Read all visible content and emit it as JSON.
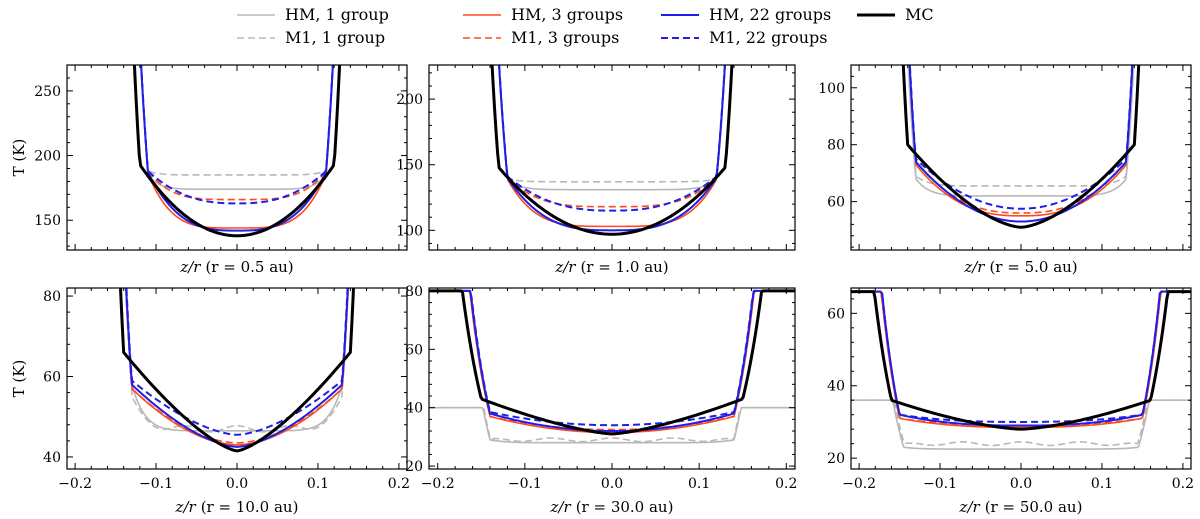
{
  "legend": {
    "entries": [
      {
        "label": "HM, 1 group",
        "color": "#b8b8b8",
        "dash": "solid",
        "width": "thin"
      },
      {
        "label": "M1, 1 group",
        "color": "#b8b8b8",
        "dash": "dashed",
        "width": "thin"
      },
      {
        "label": "HM, 3 groups",
        "color": "#ff4a1c",
        "dash": "solid",
        "width": "thin"
      },
      {
        "label": "M1, 3 groups",
        "color": "#ff4a1c",
        "dash": "dashed",
        "width": "thin"
      },
      {
        "label": "HM, 22 groups",
        "color": "#1f1fe6",
        "dash": "solid",
        "width": "medium"
      },
      {
        "label": "M1, 22 groups",
        "color": "#1f1fe6",
        "dash": "dashed",
        "width": "medium"
      },
      {
        "label": "MC",
        "color": "#000000",
        "dash": "solid",
        "width": "thick"
      }
    ]
  },
  "chart_data": [
    {
      "type": "line",
      "row": 0,
      "col": 0,
      "xlabel": "z/r",
      "xlabel_suffix": "(r = 0.5 au)",
      "ylabel": "T (K)",
      "xlim": [
        -0.21,
        0.21
      ],
      "ylim": [
        127,
        270
      ],
      "xticks": [
        -0.2,
        -0.1,
        0.0,
        0.1,
        0.2
      ],
      "show_xticklabels": false,
      "yticks": [
        150,
        200,
        250
      ],
      "yticklabels": [
        "150",
        "200",
        "250"
      ],
      "series": [
        {
          "name": "HM, 1 group",
          "kind": "well",
          "floor": 174,
          "shoulder": 185,
          "edge": 0.11,
          "rise": 0.023
        },
        {
          "name": "M1, 1 group",
          "kind": "well",
          "floor": 185,
          "shoulder": 188,
          "edge": 0.11,
          "rise": 0.023
        },
        {
          "name": "HM, 3 groups",
          "kind": "bowl",
          "center": 144,
          "wall": 186,
          "edge": 0.11,
          "shape": 4,
          "rise": 0.023
        },
        {
          "name": "M1, 3 groups",
          "kind": "bowl",
          "center": 166,
          "wall": 188,
          "edge": 0.11,
          "shape": 4,
          "rise": 0.023
        },
        {
          "name": "HM, 22 groups",
          "kind": "bowl",
          "center": 142,
          "wall": 187,
          "edge": 0.11,
          "shape": 3,
          "rise": 0.023
        },
        {
          "name": "M1, 22 groups",
          "kind": "bowl",
          "center": 163,
          "wall": 188,
          "edge": 0.11,
          "shape": 2.5,
          "rise": 0.023
        },
        {
          "name": "MC",
          "kind": "bowl",
          "center": 138,
          "wall": 193,
          "edge": 0.12,
          "shape": 2,
          "rise": 0.02
        }
      ]
    },
    {
      "type": "line",
      "row": 0,
      "col": 1,
      "xlabel": "z/r",
      "xlabel_suffix": "(r = 1.0 au)",
      "ylabel": "",
      "xlim": [
        -0.21,
        0.21
      ],
      "ylim": [
        85,
        226
      ],
      "xticks": [
        -0.2,
        -0.1,
        0.0,
        0.1,
        0.2
      ],
      "show_xticklabels": false,
      "yticks": [
        100,
        150,
        200
      ],
      "yticklabels": [
        "100",
        "150",
        "200"
      ],
      "series": [
        {
          "name": "HM, 1 group",
          "kind": "well",
          "floor": 131,
          "shoulder": 138,
          "edge": 0.12,
          "rise": 0.02
        },
        {
          "name": "M1, 1 group",
          "kind": "well",
          "floor": 137,
          "shoulder": 139,
          "edge": 0.12,
          "rise": 0.02
        },
        {
          "name": "HM, 3 groups",
          "kind": "bowl",
          "center": 103,
          "wall": 139,
          "edge": 0.12,
          "shape": 4,
          "rise": 0.02
        },
        {
          "name": "M1, 3 groups",
          "kind": "bowl",
          "center": 118,
          "wall": 140,
          "edge": 0.12,
          "shape": 3.5,
          "rise": 0.02
        },
        {
          "name": "HM, 22 groups",
          "kind": "bowl",
          "center": 100,
          "wall": 140,
          "edge": 0.12,
          "shape": 3,
          "rise": 0.02
        },
        {
          "name": "M1, 22 groups",
          "kind": "bowl",
          "center": 115,
          "wall": 141,
          "edge": 0.12,
          "shape": 2.5,
          "rise": 0.02
        },
        {
          "name": "MC",
          "kind": "bowl",
          "center": 97,
          "wall": 148,
          "edge": 0.13,
          "shape": 2,
          "rise": 0.018
        }
      ]
    },
    {
      "type": "line",
      "row": 0,
      "col": 2,
      "xlabel": "z/r",
      "xlabel_suffix": "(r = 5.0 au)",
      "ylabel": "",
      "xlim": [
        -0.21,
        0.21
      ],
      "ylim": [
        43,
        108
      ],
      "xticks": [
        -0.2,
        -0.1,
        0.0,
        0.1,
        0.2
      ],
      "show_xticklabels": false,
      "yticks": [
        60,
        80,
        100
      ],
      "yticklabels": [
        "60",
        "80",
        "100"
      ],
      "series": [
        {
          "name": "HM, 1 group",
          "kind": "well",
          "floor": 62,
          "shoulder": 68,
          "edge": 0.13,
          "rise": 0.02
        },
        {
          "name": "M1, 1 group",
          "kind": "well",
          "floor": 65.5,
          "shoulder": 69,
          "edge": 0.13,
          "rise": 0.02
        },
        {
          "name": "HM, 3 groups",
          "kind": "bowl",
          "center": 55,
          "wall": 73,
          "edge": 0.13,
          "shape": 2.5,
          "rise": 0.02
        },
        {
          "name": "M1, 3 groups",
          "kind": "bowl",
          "center": 56,
          "wall": 74,
          "edge": 0.13,
          "shape": 2.5,
          "rise": 0.02
        },
        {
          "name": "HM, 22 groups",
          "kind": "bowl",
          "center": 53,
          "wall": 74,
          "edge": 0.13,
          "shape": 2,
          "rise": 0.02
        },
        {
          "name": "M1, 22 groups",
          "kind": "bowl",
          "center": 57.5,
          "wall": 75,
          "edge": 0.13,
          "shape": 2,
          "rise": 0.02
        },
        {
          "name": "MC",
          "kind": "bowl",
          "center": 51,
          "wall": 80,
          "edge": 0.14,
          "shape": 1.6,
          "rise": 0.018
        }
      ]
    },
    {
      "type": "line",
      "row": 1,
      "col": 0,
      "xlabel": "z/r",
      "xlabel_suffix": "(r = 10.0 au)",
      "ylabel": "T (K)",
      "xlim": [
        -0.21,
        0.21
      ],
      "ylim": [
        37,
        82
      ],
      "xticks": [
        -0.2,
        -0.1,
        0.0,
        0.1,
        0.2
      ],
      "show_xticklabels": true,
      "xticklabels": [
        "−0.2",
        "−0.1",
        "0.0",
        "0.1",
        "0.2"
      ],
      "yticks": [
        40,
        60,
        80
      ],
      "yticklabels": [
        "40",
        "60",
        "80"
      ],
      "series": [
        {
          "name": "HM, 1 group",
          "kind": "well",
          "floor": 46.5,
          "shoulder": 58,
          "edge": 0.13,
          "rise": 0.02
        },
        {
          "name": "M1, 1 group",
          "kind": "well",
          "floor": 47,
          "shoulder": 56,
          "edge": 0.13,
          "rise": 0.02,
          "bump": 3
        },
        {
          "name": "HM, 3 groups",
          "kind": "bowl",
          "center": 43,
          "wall": 57,
          "edge": 0.13,
          "shape": 1.8,
          "rise": 0.02
        },
        {
          "name": "M1, 3 groups",
          "kind": "bowl",
          "center": 43.5,
          "wall": 57,
          "edge": 0.13,
          "shape": 1.8,
          "rise": 0.02
        },
        {
          "name": "HM, 22 groups",
          "kind": "bowl",
          "center": 42.5,
          "wall": 58,
          "edge": 0.13,
          "shape": 1.6,
          "rise": 0.02
        },
        {
          "name": "M1, 22 groups",
          "kind": "bowl",
          "center": 45.5,
          "wall": 59,
          "edge": 0.13,
          "shape": 1.6,
          "rise": 0.02
        },
        {
          "name": "MC",
          "kind": "bowl",
          "center": 41.5,
          "wall": 66,
          "edge": 0.14,
          "shape": 1.4,
          "rise": 0.018
        }
      ]
    },
    {
      "type": "line",
      "row": 1,
      "col": 1,
      "xlabel": "z/r",
      "xlabel_suffix": "(r = 30.0 au)",
      "ylabel": "",
      "xlim": [
        -0.21,
        0.21
      ],
      "ylim": [
        19,
        81
      ],
      "xticks": [
        -0.2,
        -0.1,
        0.0,
        0.1,
        0.2
      ],
      "show_xticklabels": true,
      "xticklabels": [
        "−0.2",
        "−0.1",
        "0.0",
        "0.1",
        "0.2"
      ],
      "yticks": [
        20,
        40,
        60,
        80
      ],
      "yticklabels": [
        "20",
        "40",
        "60",
        "80"
      ],
      "series": [
        {
          "name": "HM, 1 group",
          "kind": "well",
          "floor": 28,
          "shoulder": 29,
          "edge": 0.14,
          "rise": 0.025,
          "top": 40
        },
        {
          "name": "M1, 1 group",
          "kind": "well",
          "floor": 29,
          "shoulder": 30,
          "edge": 0.14,
          "rise": 0.025,
          "bump": 2.5,
          "top": 40
        },
        {
          "name": "HM, 3 groups",
          "kind": "bowl",
          "center": 31.5,
          "wall": 37,
          "edge": 0.14,
          "shape": 2,
          "rise": 0.03,
          "top": 80
        },
        {
          "name": "M1, 3 groups",
          "kind": "bowl",
          "center": 32.5,
          "wall": 37,
          "edge": 0.14,
          "shape": 2,
          "rise": 0.03,
          "top": 80
        },
        {
          "name": "HM, 22 groups",
          "kind": "bowl",
          "center": 32,
          "wall": 38,
          "edge": 0.14,
          "shape": 2,
          "rise": 0.03,
          "top": 80
        },
        {
          "name": "M1, 22 groups",
          "kind": "bowl",
          "center": 34,
          "wall": 38.5,
          "edge": 0.14,
          "shape": 2,
          "rise": 0.03,
          "top": 80
        },
        {
          "name": "MC",
          "kind": "bowl",
          "center": 31,
          "wall": 43,
          "edge": 0.15,
          "shape": 1.4,
          "rise": 0.035,
          "top": 80
        }
      ]
    },
    {
      "type": "line",
      "row": 1,
      "col": 2,
      "xlabel": "z/r",
      "xlabel_suffix": "(r = 50.0 au)",
      "ylabel": "",
      "xlim": [
        -0.21,
        0.21
      ],
      "ylim": [
        17,
        67
      ],
      "xticks": [
        -0.2,
        -0.1,
        0.0,
        0.1,
        0.2
      ],
      "show_xticklabels": true,
      "xticklabels": [
        "−0.2",
        "−0.1",
        "0.0",
        "0.1",
        "0.2"
      ],
      "yticks": [
        20,
        40,
        60
      ],
      "yticklabels": [
        "20",
        "40",
        "60"
      ],
      "series": [
        {
          "name": "HM, 1 group",
          "kind": "well",
          "floor": 22.5,
          "shoulder": 23,
          "edge": 0.145,
          "rise": 0.03,
          "top": 36
        },
        {
          "name": "M1, 1 group",
          "kind": "well",
          "floor": 24,
          "shoulder": 24.5,
          "edge": 0.145,
          "rise": 0.03,
          "bump": 2,
          "top": 36
        },
        {
          "name": "HM, 3 groups",
          "kind": "bowl",
          "center": 28.5,
          "wall": 31,
          "edge": 0.15,
          "shape": 2.5,
          "rise": 0.03,
          "top": 66
        },
        {
          "name": "M1, 3 groups",
          "kind": "bowl",
          "center": 29,
          "wall": 31,
          "edge": 0.15,
          "shape": 2.5,
          "rise": 0.03,
          "top": 66
        },
        {
          "name": "HM, 22 groups",
          "kind": "bowl",
          "center": 29,
          "wall": 32,
          "edge": 0.15,
          "shape": 2.5,
          "rise": 0.03,
          "top": 66
        },
        {
          "name": "M1, 22 groups",
          "kind": "bowl",
          "center": 30,
          "wall": 32,
          "edge": 0.15,
          "shape": 2.5,
          "rise": 0.03,
          "top": 66
        },
        {
          "name": "MC",
          "kind": "bowl",
          "center": 28,
          "wall": 36,
          "edge": 0.16,
          "shape": 1.5,
          "rise": 0.035,
          "top": 66
        }
      ]
    }
  ]
}
